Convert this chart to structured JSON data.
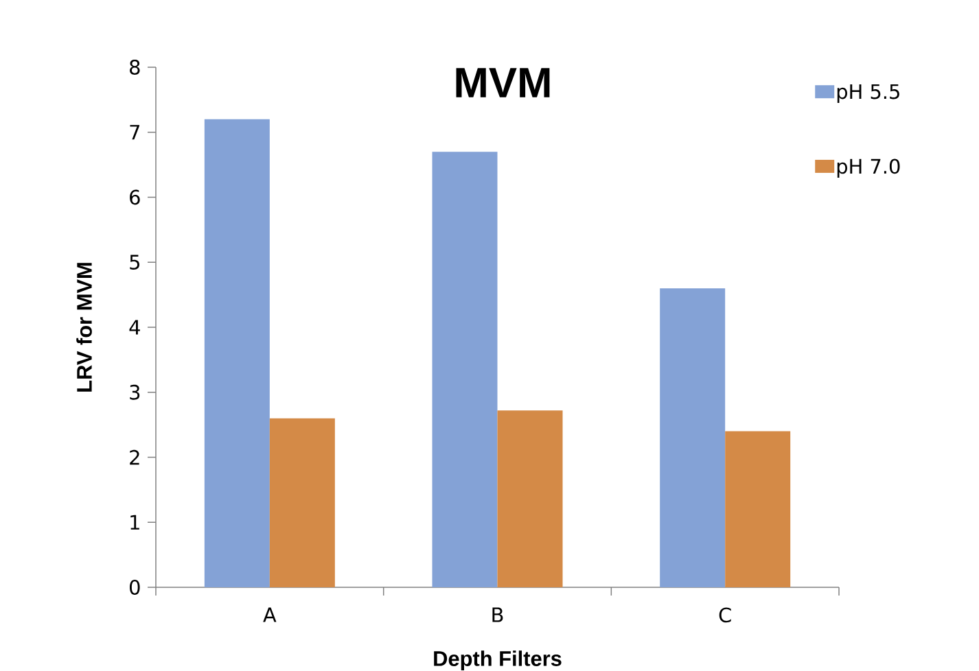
{
  "chart_data": {
    "type": "bar",
    "title": "MVM",
    "xlabel": "Depth Filters",
    "ylabel": "LRV for MVM",
    "categories": [
      "A",
      "B",
      "C"
    ],
    "series": [
      {
        "name": "pH 5.5",
        "color": "#84a2d6",
        "values": [
          7.2,
          6.7,
          4.6
        ]
      },
      {
        "name": "pH 7.0",
        "color": "#d48a47",
        "values": [
          2.6,
          2.72,
          2.4
        ]
      }
    ],
    "ylim": [
      0,
      8
    ],
    "yticks": [
      0,
      1,
      2,
      3,
      4,
      5,
      6,
      7,
      8
    ],
    "legend": "top right"
  }
}
